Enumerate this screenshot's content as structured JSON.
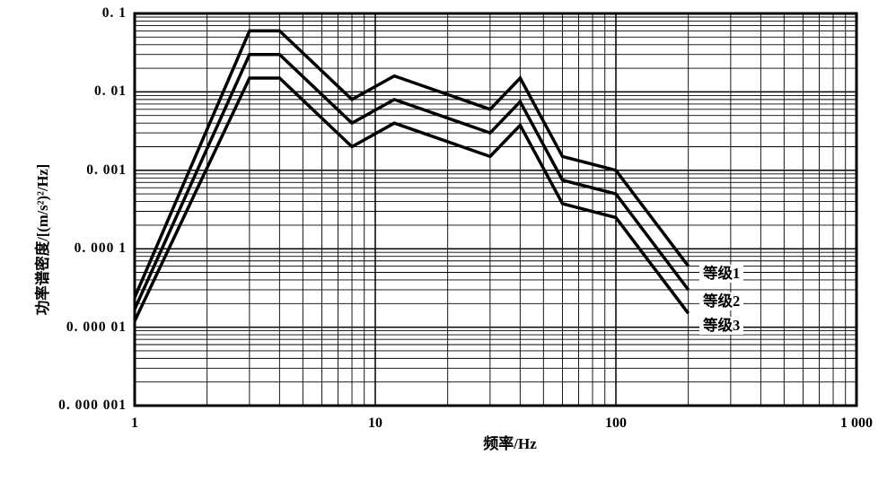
{
  "chart_data": {
    "type": "line",
    "title": "",
    "xlabel": "频率/Hz",
    "ylabel": "功率谱密度/[(m/s²)²/Hz]",
    "x_scale": "log",
    "y_scale": "log",
    "xlim": [
      1,
      1000
    ],
    "ylim": [
      1e-06,
      0.1
    ],
    "grid": true,
    "grid_style": "full log grid with minor lines 2-9 per decade",
    "x_tick_values": [
      1,
      10,
      100,
      1000
    ],
    "x_tick_labels": [
      "1",
      "10",
      "100",
      "1 000"
    ],
    "y_tick_values": [
      0.1,
      0.01,
      0.001,
      0.0001,
      1e-05,
      1e-06
    ],
    "y_tick_labels": [
      "0. 1",
      "0. 01",
      "0. 001",
      "0. 000 1",
      "0. 000 01",
      "0. 000 001"
    ],
    "x": [
      1,
      3,
      4,
      8,
      12,
      30,
      40,
      60,
      100,
      200
    ],
    "series": [
      {
        "name": "等级1",
        "values": [
          2.4e-05,
          0.06,
          0.06,
          0.008,
          0.016,
          0.006,
          0.015,
          0.0015,
          0.001,
          6e-05
        ]
      },
      {
        "name": "等级2",
        "values": [
          1.7e-05,
          0.03,
          0.03,
          0.004,
          0.008,
          0.003,
          0.0075,
          0.00075,
          0.0005,
          3e-05
        ]
      },
      {
        "name": "等级3",
        "values": [
          1.2e-05,
          0.015,
          0.015,
          0.002,
          0.004,
          0.0015,
          0.00375,
          0.000375,
          0.00025,
          1.5e-05
        ]
      }
    ],
    "legend_position": "inside-right near curve ends",
    "line_color": "#000000",
    "grid_color": "#000000",
    "line_width": 3.5
  }
}
